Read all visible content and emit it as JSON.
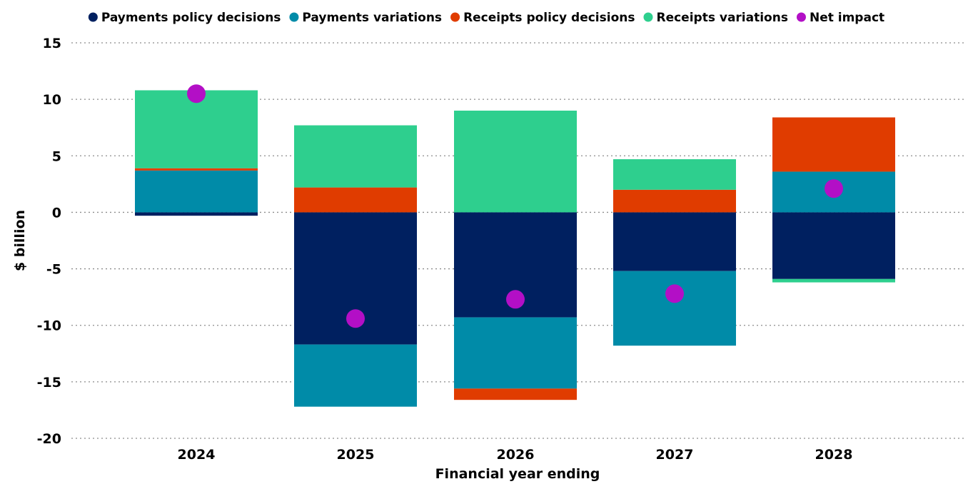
{
  "chart_data": {
    "type": "bar",
    "stacked": true,
    "categories": [
      "2024",
      "2025",
      "2026",
      "2027",
      "2028"
    ],
    "series": [
      {
        "name": "Payments policy decisions",
        "color": "#002060",
        "values": [
          -0.3,
          -11.7,
          -9.3,
          -5.2,
          -5.9
        ]
      },
      {
        "name": "Payments variations",
        "color": "#008ba8",
        "values": [
          3.7,
          -5.5,
          -6.3,
          -6.6,
          3.6
        ]
      },
      {
        "name": "Receipts policy decisions",
        "color": "#e03c00",
        "values": [
          0.2,
          2.2,
          -1.0,
          2.0,
          4.8
        ]
      },
      {
        "name": "Receipts variations",
        "color": "#2ecf8e",
        "values": [
          6.9,
          5.5,
          9.0,
          2.7,
          -0.3
        ]
      }
    ],
    "net_impact": {
      "name": "Net impact",
      "color": "#b30fc6",
      "values": [
        10.5,
        -9.4,
        -7.7,
        -7.2,
        2.1
      ]
    },
    "xlabel": "Financial year ending",
    "ylabel": "$ billion",
    "ylim": [
      -20,
      15
    ],
    "yticks": [
      "15",
      "10",
      "5",
      "0",
      "-5",
      "-10",
      "-15",
      "-20"
    ],
    "grid": true,
    "legend_position": "top"
  }
}
